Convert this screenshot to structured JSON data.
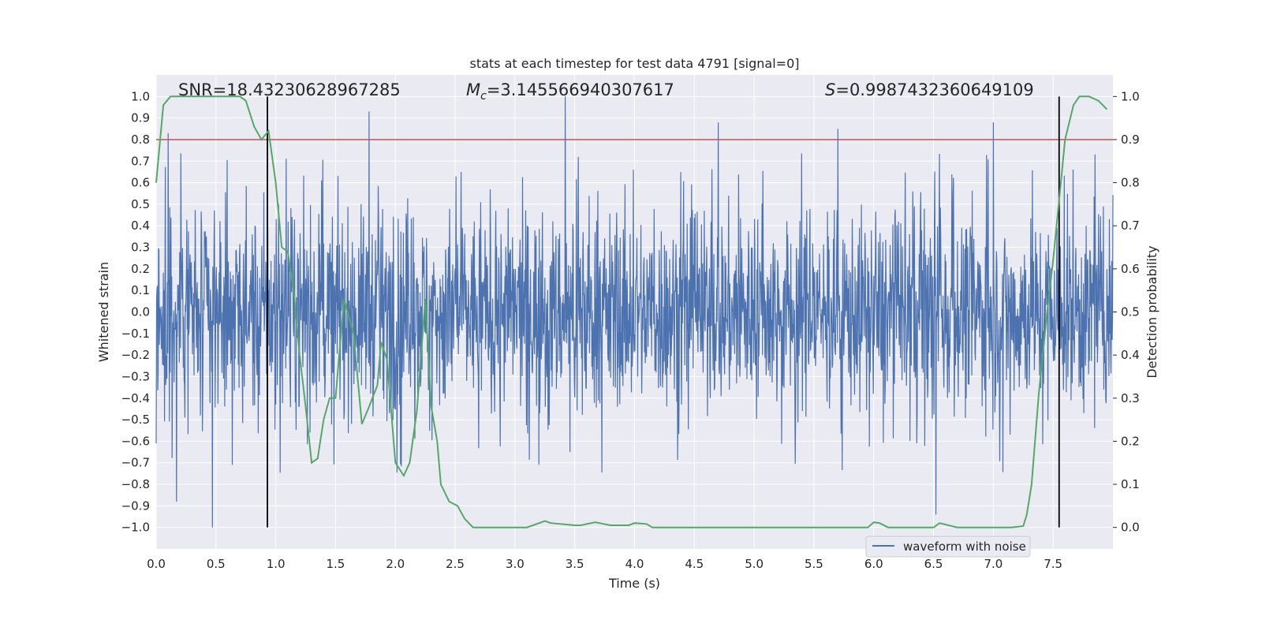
{
  "chart_data": {
    "type": "line",
    "title": "stats at each timestep for test data 4791 [signal=0]",
    "xlabel": "Time (s)",
    "ylabel": "Whitened strain",
    "y2label": "Detection probability",
    "xlim": [
      0.0,
      8.0
    ],
    "ylim": [
      -1.1,
      1.1
    ],
    "y2lim": [
      -0.05,
      1.05
    ],
    "x_ticks": [
      "0.0",
      "0.5",
      "1.0",
      "1.5",
      "2.0",
      "2.5",
      "3.0",
      "3.5",
      "4.0",
      "4.5",
      "5.0",
      "5.5",
      "6.0",
      "6.5",
      "7.0",
      "7.5"
    ],
    "y_ticks": [
      "−1.0",
      "−0.9",
      "−0.8",
      "−0.7",
      "−0.6",
      "−0.5",
      "−0.4",
      "−0.3",
      "−0.2",
      "−0.1",
      "0.0",
      "0.1",
      "0.2",
      "0.3",
      "0.4",
      "0.5",
      "0.6",
      "0.7",
      "0.8",
      "0.9",
      "1.0"
    ],
    "y2_ticks": [
      "0.0",
      "0.1",
      "0.2",
      "0.3",
      "0.4",
      "0.5",
      "0.6",
      "0.7",
      "0.8",
      "0.9",
      "1.0"
    ],
    "grid": true,
    "legend_placement": "lower-right",
    "annotations": {
      "snr": "SNR=18.43230628967285",
      "mc_symbol": "M",
      "mc_sub": "c",
      "mc_value": "=3.145566940307617",
      "s_symbol": "S",
      "s_value": "=0.9987432360649109"
    },
    "series": [
      {
        "name": "waveform with noise",
        "axis": "left",
        "color": "#4c72b0",
        "description_peaks_x": [
          0.1,
          0.17,
          0.47,
          1.78,
          3.42,
          4.7,
          5.7,
          6.52,
          7.0
        ],
        "peak_values": [
          0.83,
          -0.88,
          -1.0,
          0.93,
          1.0,
          0.88,
          0.85,
          -0.94,
          0.88
        ],
        "typical_envelope": [
          -0.5,
          0.5
        ]
      },
      {
        "axis": "right",
        "color": "#55a868",
        "x": [
          0.0,
          0.06,
          0.12,
          0.2,
          0.4,
          0.6,
          0.7,
          0.75,
          0.82,
          0.88,
          0.94,
          1.0,
          1.05,
          1.1,
          1.15,
          1.2,
          1.25,
          1.3,
          1.35,
          1.4,
          1.45,
          1.5,
          1.57,
          1.65,
          1.72,
          1.78,
          1.85,
          1.88,
          1.93,
          2.0,
          2.07,
          2.12,
          2.18,
          2.25,
          2.3,
          2.35,
          2.38,
          2.45,
          2.52,
          2.58,
          2.65,
          2.8,
          3.05,
          3.1,
          3.25,
          3.3,
          3.5,
          3.55,
          3.67,
          3.8,
          3.95,
          4.0,
          4.1,
          4.15,
          4.3,
          4.5,
          5.0,
          5.3,
          5.45,
          5.6,
          5.85,
          5.95,
          6.0,
          6.05,
          6.12,
          6.3,
          6.5,
          6.55,
          6.7,
          6.85,
          7.05,
          7.15,
          7.25,
          7.28,
          7.32,
          7.38,
          7.45,
          7.5,
          7.55,
          7.6,
          7.67,
          7.72,
          7.8,
          7.88,
          7.95
        ],
        "values": [
          0.8,
          0.98,
          1.0,
          1.0,
          1.0,
          1.0,
          1.0,
          0.99,
          0.93,
          0.9,
          0.92,
          0.8,
          0.65,
          0.64,
          0.55,
          0.4,
          0.28,
          0.15,
          0.16,
          0.25,
          0.3,
          0.3,
          0.53,
          0.45,
          0.24,
          0.28,
          0.33,
          0.43,
          0.39,
          0.15,
          0.12,
          0.15,
          0.27,
          0.53,
          0.28,
          0.2,
          0.1,
          0.06,
          0.05,
          0.02,
          0.0,
          0.0,
          0.0,
          0.0,
          0.015,
          0.01,
          0.005,
          0.005,
          0.012,
          0.005,
          0.005,
          0.01,
          0.008,
          0.0,
          0.0,
          0.0,
          0.0,
          0.0,
          0.0,
          0.0,
          0.0,
          0.0,
          0.012,
          0.01,
          0.0,
          0.0,
          0.0,
          0.01,
          0.0,
          0.0,
          0.0,
          0.0,
          0.003,
          0.03,
          0.1,
          0.31,
          0.5,
          0.62,
          0.76,
          0.9,
          0.98,
          1.0,
          1.0,
          0.99,
          0.97
        ]
      }
    ],
    "threshold": {
      "axis": "right",
      "value": 0.9,
      "color": "#c44e52"
    },
    "vlines": {
      "x": [
        0.93,
        7.55
      ],
      "ymin": -1.0,
      "ymax": 1.0,
      "color": "#000000"
    }
  }
}
